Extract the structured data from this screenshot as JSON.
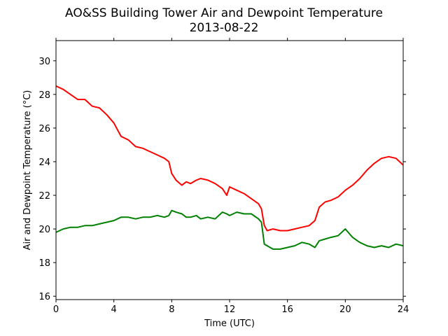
{
  "chart_data": {
    "type": "line",
    "title": "AO&SS Building Tower Air and Dewpoint Temperature",
    "subtitle": "2013-08-22",
    "xlabel": "Time (UTC)",
    "ylabel": "Air and Dewpoint Temperature (°C)",
    "xlim": [
      0,
      24
    ],
    "ylim": [
      15.8,
      31.2
    ],
    "xticks": [
      0,
      4,
      8,
      12,
      16,
      20,
      24
    ],
    "yticks": [
      16,
      18,
      20,
      22,
      24,
      26,
      28,
      30
    ],
    "grid": false,
    "series": [
      {
        "color": "#ff0000",
        "x": [
          0,
          0.5,
          1,
          1.5,
          2,
          2.5,
          3,
          3.5,
          4,
          4.25,
          4.5,
          5,
          5.5,
          6,
          6.5,
          7,
          7.5,
          7.8,
          8,
          8.3,
          8.7,
          9,
          9.3,
          9.7,
          10,
          10.5,
          11,
          11.5,
          11.8,
          12,
          12.5,
          13,
          13.5,
          14,
          14.2,
          14.4,
          14.6,
          15,
          15.5,
          16,
          16.5,
          17,
          17.5,
          17.9,
          18.2,
          18.6,
          19,
          19.5,
          20,
          20.5,
          21,
          21.5,
          22,
          22.5,
          23,
          23.5,
          24
        ],
        "values": [
          28.5,
          28.3,
          28.0,
          27.7,
          27.7,
          27.3,
          27.2,
          26.8,
          26.3,
          25.9,
          25.5,
          25.3,
          24.9,
          24.8,
          24.6,
          24.4,
          24.2,
          24.0,
          23.3,
          22.9,
          22.6,
          22.8,
          22.7,
          22.9,
          23.0,
          22.9,
          22.7,
          22.4,
          22.0,
          22.5,
          22.3,
          22.1,
          21.8,
          21.5,
          21.2,
          20.2,
          19.9,
          20.0,
          19.9,
          19.9,
          20.0,
          20.1,
          20.2,
          20.5,
          21.3,
          21.6,
          21.7,
          21.9,
          22.3,
          22.6,
          23.0,
          23.5,
          23.9,
          24.2,
          24.3,
          24.2,
          23.8
        ]
      },
      {
        "color": "#008000",
        "x": [
          0,
          0.5,
          1,
          1.5,
          2,
          2.5,
          3,
          3.5,
          4,
          4.25,
          4.5,
          5,
          5.5,
          6,
          6.5,
          7,
          7.5,
          7.8,
          8,
          8.3,
          8.7,
          9,
          9.3,
          9.7,
          10,
          10.5,
          11,
          11.5,
          11.8,
          12,
          12.5,
          13,
          13.5,
          14,
          14.2,
          14.4,
          14.6,
          15,
          15.5,
          16,
          16.5,
          17,
          17.5,
          17.9,
          18.2,
          18.6,
          19,
          19.5,
          20,
          20.5,
          21,
          21.5,
          22,
          22.5,
          23,
          23.5,
          24
        ],
        "values": [
          19.8,
          20.0,
          20.1,
          20.1,
          20.2,
          20.2,
          20.3,
          20.4,
          20.5,
          20.6,
          20.7,
          20.7,
          20.6,
          20.7,
          20.7,
          20.8,
          20.7,
          20.8,
          21.1,
          21.0,
          20.9,
          20.7,
          20.7,
          20.8,
          20.6,
          20.7,
          20.6,
          21.0,
          20.9,
          20.8,
          21.0,
          20.9,
          20.9,
          20.6,
          20.4,
          19.1,
          19.0,
          18.8,
          18.8,
          18.9,
          19.0,
          19.2,
          19.1,
          18.9,
          19.3,
          19.4,
          19.5,
          19.6,
          20.0,
          19.5,
          19.2,
          19.0,
          18.9,
          19.0,
          18.9,
          19.1,
          19.0
        ]
      }
    ]
  }
}
